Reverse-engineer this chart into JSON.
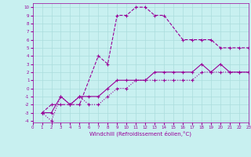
{
  "xlabel": "Windchill (Refroidissement éolien,°C)",
  "bg_color": "#c8f0f0",
  "grid_color": "#aadddd",
  "line_color": "#990099",
  "xlim": [
    0,
    23
  ],
  "ylim": [
    -4.2,
    10.5
  ],
  "xticks": [
    0,
    1,
    2,
    3,
    4,
    5,
    6,
    7,
    8,
    9,
    10,
    11,
    12,
    13,
    14,
    15,
    16,
    17,
    18,
    19,
    20,
    21,
    22,
    23
  ],
  "yticks": [
    -4,
    -3,
    -2,
    -1,
    0,
    1,
    2,
    3,
    4,
    5,
    6,
    7,
    8,
    9,
    10
  ],
  "line1_x": [
    1,
    2,
    3,
    4,
    5,
    7,
    8,
    9,
    10,
    11,
    12,
    13,
    14,
    16,
    17,
    18,
    19,
    20,
    21,
    22,
    23
  ],
  "line1_y": [
    -3,
    -2,
    -2,
    -2,
    -2,
    4,
    3,
    9,
    9,
    10,
    10,
    9,
    9,
    6,
    6,
    6,
    6,
    5,
    5,
    5,
    5
  ],
  "line2_x": [
    1,
    2,
    3,
    4,
    5,
    6,
    7,
    8,
    9,
    10,
    11,
    12,
    13,
    14,
    15,
    16,
    17,
    18,
    19,
    20,
    21,
    22,
    23
  ],
  "line2_y": [
    -3,
    -4,
    -1,
    -2,
    -1,
    -2,
    -2,
    -1,
    0,
    0,
    1,
    1,
    1,
    1,
    1,
    1,
    1,
    2,
    2,
    2,
    2,
    2,
    2
  ],
  "line3_x": [
    1,
    2,
    3,
    4,
    5,
    6,
    7,
    8,
    9,
    10,
    11,
    12,
    13,
    14,
    15,
    16,
    17,
    18,
    19,
    20,
    21,
    22,
    23
  ],
  "line3_y": [
    -3,
    -3,
    -1,
    -2,
    -1,
    -1,
    -1,
    0,
    1,
    1,
    1,
    1,
    2,
    2,
    2,
    2,
    2,
    3,
    2,
    3,
    2,
    2,
    2
  ],
  "tick_fontsize": 4.0,
  "xlabel_fontsize": 5.0
}
